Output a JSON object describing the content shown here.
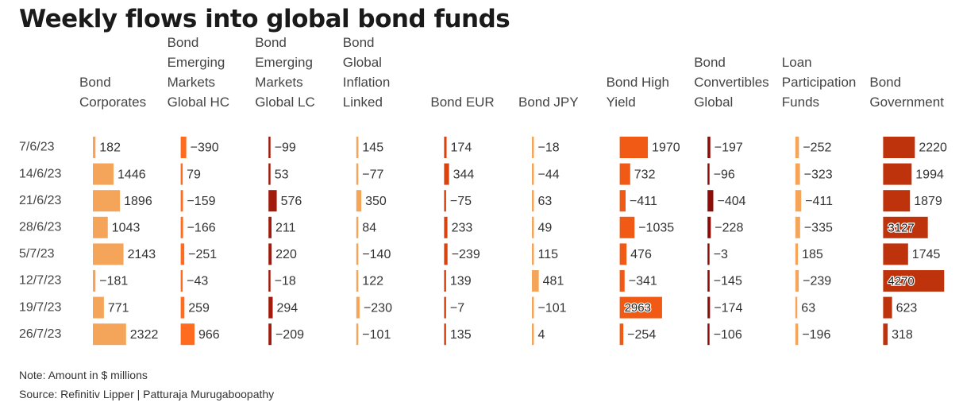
{
  "title": "Weekly flows into global bond funds",
  "note": "Note: Amount in $ millions",
  "source": "Source: Refinitiv Lipper | Patturaja Murugaboopathy",
  "chart_data": {
    "type": "table",
    "title": "Weekly flows into global bond funds",
    "rows": [
      "7/6/23",
      "14/6/23",
      "21/6/23",
      "28/6/23",
      "5/7/23",
      "12/7/23",
      "19/7/23",
      "26/7/23"
    ],
    "columns": [
      {
        "name": [
          "Bond",
          "Corporates"
        ],
        "color": "#f5a55a",
        "values": [
          182,
          1446,
          1896,
          1043,
          2143,
          -181,
          771,
          2322
        ]
      },
      {
        "name": [
          "Bond",
          "Emerging",
          "Markets",
          "Global HC"
        ],
        "color": "#ff6b1f",
        "values": [
          -390,
          79,
          -159,
          -166,
          -251,
          -43,
          259,
          966
        ]
      },
      {
        "name": [
          "Bond",
          "Emerging",
          "Markets",
          "Global LC"
        ],
        "color": "#a11a0c",
        "values": [
          -99,
          53,
          576,
          211,
          220,
          -18,
          294,
          -209
        ]
      },
      {
        "name": [
          "Bond",
          "Global",
          "Inflation",
          "Linked"
        ],
        "color": "#f5a55a",
        "values": [
          145,
          -77,
          350,
          84,
          -140,
          122,
          -230,
          -101
        ]
      },
      {
        "name": [
          "Bond EUR"
        ],
        "color": "#d9430f",
        "values": [
          174,
          344,
          -75,
          233,
          -239,
          139,
          -7,
          135
        ]
      },
      {
        "name": [
          "Bond JPY"
        ],
        "color": "#f5a55a",
        "values": [
          -18,
          -44,
          63,
          49,
          115,
          481,
          -101,
          4
        ]
      },
      {
        "name": [
          "Bond High",
          "Yield"
        ],
        "color": "#f05a14",
        "values": [
          1970,
          732,
          -411,
          -1035,
          476,
          -341,
          2963,
          -254
        ]
      },
      {
        "name": [
          "Bond",
          "Convertibles",
          "Global"
        ],
        "color": "#8c0d07",
        "values": [
          -197,
          -96,
          -404,
          -228,
          -3,
          -145,
          -174,
          -106
        ]
      },
      {
        "name": [
          "Loan",
          "Participation",
          "Funds"
        ],
        "color": "#f5a55a",
        "values": [
          -252,
          -323,
          -411,
          -335,
          185,
          -239,
          63,
          -196
        ]
      },
      {
        "name": [
          "Bond",
          "Government"
        ],
        "color": "#bf330c",
        "values": [
          2220,
          1994,
          1879,
          3127,
          1745,
          4270,
          623,
          318
        ]
      }
    ],
    "legend": "none",
    "grid": false
  }
}
